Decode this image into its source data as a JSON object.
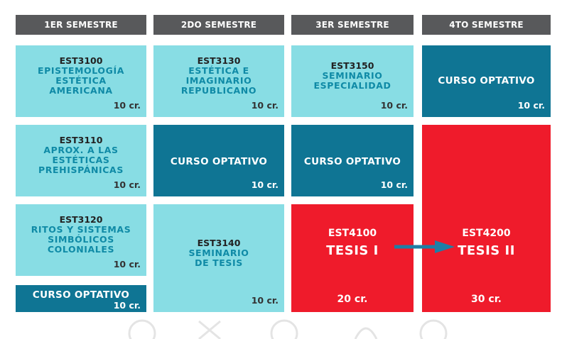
{
  "headers": [
    "1ER SEMESTRE",
    "2DO SEMESTRE",
    "3ER SEMESTRE",
    "4TO SEMESTRE"
  ],
  "courses": {
    "est3100": {
      "code": "EST3100",
      "lines": [
        "EPISTEMOLOGÍA",
        "ESTÉTICA",
        "AMERICANA"
      ],
      "credits": "10 cr."
    },
    "est3110": {
      "code": "EST3110",
      "lines": [
        "APROX. A LAS",
        "ESTÉTICAS",
        "PREHISPÁNICAS"
      ],
      "credits": "10 cr."
    },
    "est3120": {
      "code": "EST3120",
      "lines": [
        "RITOS Y SISTEMAS",
        "SIMBÓLICOS",
        "COLONIALES"
      ],
      "credits": "10 cr."
    },
    "optativo_1": {
      "title": "CURSO OPTATIVO",
      "credits": "10 cr."
    },
    "est3130": {
      "code": "EST3130",
      "lines": [
        "ESTÉTICA E",
        "IMAGINARIO",
        "REPUBLICANO"
      ],
      "credits": "10 cr."
    },
    "optativo_2": {
      "title": "CURSO OPTATIVO",
      "credits": "10 cr."
    },
    "est3140": {
      "code": "EST3140",
      "lines": [
        "SEMINARIO",
        "DE TESIS"
      ],
      "credits": "10 cr."
    },
    "est3150": {
      "code": "EST3150",
      "lines": [
        "SEMINARIO",
        "ESPECIALIDAD"
      ],
      "credits": "10 cr."
    },
    "optativo_3": {
      "title": "CURSO OPTATIVO",
      "credits": "10 cr."
    },
    "est4100": {
      "code": "EST4100",
      "title": "TESIS I",
      "credits": "20 cr."
    },
    "optativo_4": {
      "title": "CURSO OPTATIVO",
      "credits": "10 cr."
    },
    "est4200": {
      "code": "EST4200",
      "title": "TESIS II",
      "credits": "30 cr."
    }
  },
  "colors": {
    "header": "#58595b",
    "light": "#88dde4",
    "dark": "#0f7594",
    "red": "#ef1b2b",
    "arrow": "#1e7fa6"
  }
}
